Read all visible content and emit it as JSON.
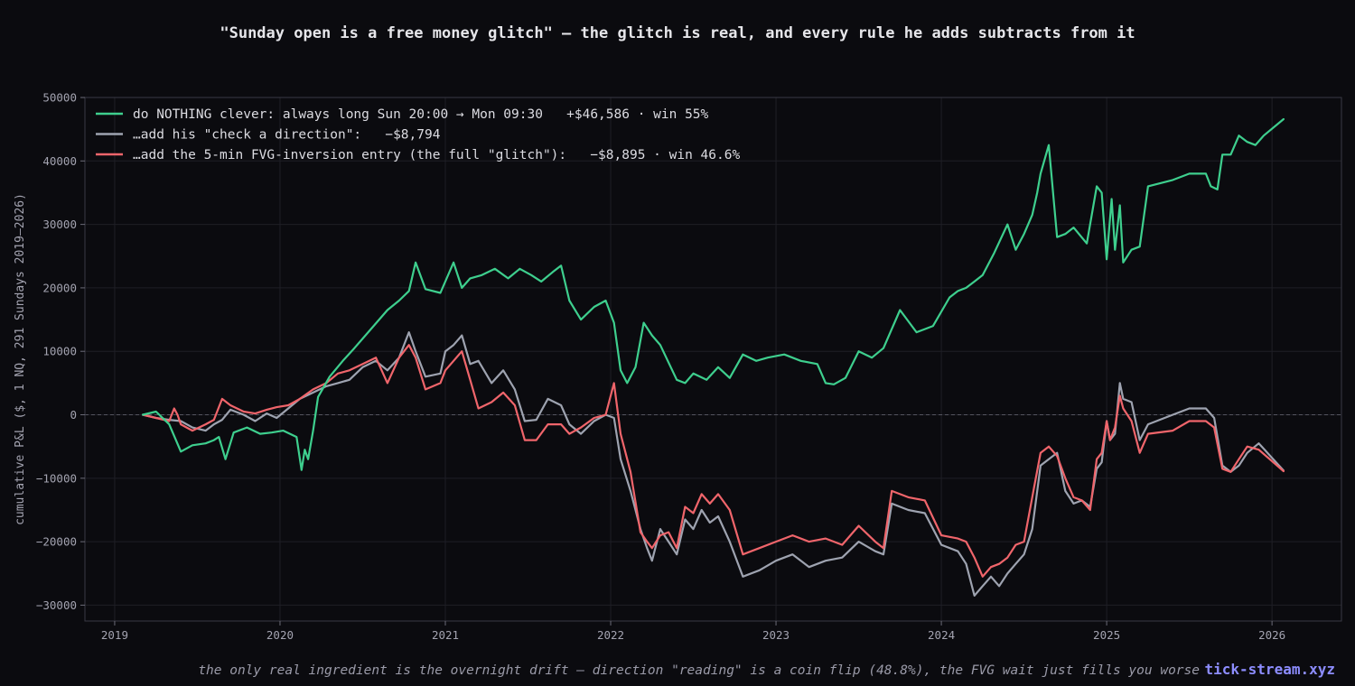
{
  "chart_data": {
    "type": "line",
    "title": "\"Sunday open is a free money glitch\" — the glitch is real, and every rule he adds subtracts from it",
    "xlabel": "",
    "ylabel": "cumulative P&L ($, 1 NQ, 291 Sundays 2019–2026)",
    "xlim": [
      2018.82,
      2026.42
    ],
    "ylim": [
      -32500,
      50000
    ],
    "x_ticks": [
      2019,
      2020,
      2021,
      2022,
      2023,
      2024,
      2025,
      2026
    ],
    "x_tick_labels": [
      "2019",
      "2020",
      "2021",
      "2022",
      "2023",
      "2024",
      "2025",
      "2026"
    ],
    "y_ticks": [
      -30000,
      -20000,
      -10000,
      0,
      10000,
      20000,
      30000,
      40000,
      50000
    ],
    "y_tick_labels": [
      "−30000",
      "−20000",
      "−10000",
      "0",
      "10000",
      "20000",
      "30000",
      "40000",
      "50000"
    ],
    "grid": true,
    "zero_line": true,
    "legend_position": "top-left",
    "series": [
      {
        "name": "do NOTHING clever: always long Sun 20:00 → Mon 09:30   +$46,586 · win 55%",
        "color": "#3ecf8e",
        "x": [
          2019.17,
          2019.25,
          2019.33,
          2019.4,
          2019.47,
          2019.55,
          2019.6,
          2019.63,
          2019.67,
          2019.72,
          2019.8,
          2019.88,
          2019.95,
          2020.02,
          2020.1,
          2020.13,
          2020.15,
          2020.17,
          2020.2,
          2020.23,
          2020.3,
          2020.38,
          2020.45,
          2020.55,
          2020.65,
          2020.72,
          2020.78,
          2020.82,
          2020.88,
          2020.97,
          2021.05,
          2021.1,
          2021.15,
          2021.22,
          2021.3,
          2021.38,
          2021.45,
          2021.52,
          2021.58,
          2021.65,
          2021.7,
          2021.75,
          2021.82,
          2021.9,
          2021.97,
          2022.02,
          2022.06,
          2022.1,
          2022.15,
          2022.2,
          2022.25,
          2022.3,
          2022.4,
          2022.45,
          2022.5,
          2022.58,
          2022.65,
          2022.72,
          2022.8,
          2022.88,
          2022.95,
          2023.05,
          2023.15,
          2023.25,
          2023.3,
          2023.35,
          2023.42,
          2023.5,
          2023.58,
          2023.65,
          2023.75,
          2023.85,
          2023.9,
          2023.95,
          2024.05,
          2024.1,
          2024.15,
          2024.2,
          2024.25,
          2024.32,
          2024.4,
          2024.45,
          2024.5,
          2024.55,
          2024.58,
          2024.6,
          2024.65,
          2024.7,
          2024.75,
          2024.8,
          2024.88,
          2024.94,
          2024.97,
          2025.0,
          2025.03,
          2025.05,
          2025.08,
          2025.1,
          2025.15,
          2025.2,
          2025.25,
          2025.4,
          2025.5,
          2025.6,
          2025.63,
          2025.67,
          2025.7,
          2025.75,
          2025.8,
          2025.85,
          2025.9,
          2025.95,
          2026.07
        ],
        "y": [
          0,
          500,
          -1500,
          -5800,
          -4800,
          -4500,
          -4000,
          -3500,
          -7000,
          -2800,
          -2000,
          -3000,
          -2800,
          -2500,
          -3500,
          -8700,
          -5500,
          -7000,
          -2500,
          2800,
          6000,
          8500,
          10500,
          13500,
          16500,
          18000,
          19500,
          24000,
          19800,
          19200,
          24000,
          20000,
          21500,
          22000,
          23000,
          21500,
          23000,
          22000,
          21000,
          22500,
          23500,
          18000,
          15000,
          17000,
          18000,
          14500,
          7000,
          5000,
          7500,
          14500,
          12500,
          11000,
          5500,
          5000,
          6500,
          5500,
          7500,
          5800,
          9500,
          8500,
          9000,
          9500,
          8500,
          8000,
          5000,
          4800,
          5800,
          10000,
          9000,
          10500,
          16500,
          13000,
          13500,
          14000,
          18500,
          19500,
          20000,
          21000,
          22000,
          25500,
          30000,
          26000,
          28500,
          31500,
          35000,
          38000,
          42500,
          28000,
          28500,
          29500,
          27000,
          36000,
          35000,
          24500,
          34000,
          26000,
          33000,
          24000,
          26000,
          26500,
          36000,
          37000,
          38000,
          38000,
          36000,
          35500,
          41000,
          41000,
          44000,
          43000,
          42500,
          44000,
          46586
        ]
      },
      {
        "name": "…add his \"check a direction\":   −$8,794",
        "color": "#9ea3b0",
        "x": [
          2019.17,
          2019.25,
          2019.33,
          2019.4,
          2019.47,
          2019.55,
          2019.6,
          2019.65,
          2019.7,
          2019.78,
          2019.85,
          2019.92,
          2019.98,
          2020.05,
          2020.12,
          2020.2,
          2020.28,
          2020.35,
          2020.42,
          2020.5,
          2020.58,
          2020.65,
          2020.72,
          2020.78,
          2020.82,
          2020.88,
          2020.97,
          2021.0,
          2021.05,
          2021.1,
          2021.15,
          2021.2,
          2021.28,
          2021.35,
          2021.42,
          2021.48,
          2021.55,
          2021.62,
          2021.7,
          2021.75,
          2021.82,
          2021.9,
          2021.97,
          2022.02,
          2022.06,
          2022.12,
          2022.18,
          2022.22,
          2022.25,
          2022.3,
          2022.35,
          2022.4,
          2022.45,
          2022.5,
          2022.55,
          2022.6,
          2022.65,
          2022.72,
          2022.8,
          2022.9,
          2023.0,
          2023.1,
          2023.2,
          2023.3,
          2023.4,
          2023.5,
          2023.6,
          2023.65,
          2023.7,
          2023.8,
          2023.9,
          2024.0,
          2024.1,
          2024.15,
          2024.2,
          2024.25,
          2024.3,
          2024.35,
          2024.4,
          2024.45,
          2024.5,
          2024.55,
          2024.6,
          2024.65,
          2024.7,
          2024.75,
          2024.8,
          2024.85,
          2024.9,
          2024.94,
          2024.97,
          2025.0,
          2025.02,
          2025.05,
          2025.08,
          2025.1,
          2025.15,
          2025.2,
          2025.25,
          2025.4,
          2025.5,
          2025.6,
          2025.65,
          2025.7,
          2025.75,
          2025.8,
          2025.85,
          2025.92,
          2026.07
        ],
        "y": [
          0,
          -500,
          -800,
          -1000,
          -2000,
          -2500,
          -1500,
          -800,
          800,
          0,
          -1000,
          200,
          -500,
          1000,
          2500,
          3500,
          4500,
          5000,
          5500,
          7500,
          8500,
          7000,
          9000,
          13000,
          10000,
          6000,
          6500,
          10000,
          11000,
          12500,
          8000,
          8500,
          5000,
          7000,
          4000,
          -1000,
          -800,
          2500,
          1500,
          -1500,
          -3000,
          -1000,
          0,
          -500,
          -7000,
          -12000,
          -18000,
          -21000,
          -23000,
          -18000,
          -20000,
          -22000,
          -16500,
          -18000,
          -15000,
          -17000,
          -16000,
          -20000,
          -25500,
          -24500,
          -23000,
          -22000,
          -24000,
          -23000,
          -22500,
          -20000,
          -21500,
          -22000,
          -14000,
          -15000,
          -15500,
          -20500,
          -21500,
          -23500,
          -28500,
          -27000,
          -25500,
          -27000,
          -25000,
          -23500,
          -22000,
          -18000,
          -8000,
          -7000,
          -6000,
          -12000,
          -14000,
          -13500,
          -14500,
          -8500,
          -7500,
          -1000,
          -4000,
          -3000,
          5000,
          2500,
          2000,
          -4000,
          -1500,
          0,
          1000,
          1000,
          -500,
          -8000,
          -9000,
          -8000,
          -6000,
          -4500,
          -8794
        ]
      },
      {
        "name": "…add the 5-min FVG-inversion entry (the full \"glitch\"):   −$8,895 · win 46.6%",
        "color": "#f0656b",
        "x": [
          2019.17,
          2019.25,
          2019.33,
          2019.36,
          2019.38,
          2019.4,
          2019.47,
          2019.55,
          2019.6,
          2019.65,
          2019.7,
          2019.78,
          2019.85,
          2019.92,
          2019.98,
          2020.05,
          2020.12,
          2020.2,
          2020.28,
          2020.35,
          2020.42,
          2020.5,
          2020.58,
          2020.65,
          2020.72,
          2020.78,
          2020.82,
          2020.88,
          2020.97,
          2021.0,
          2021.05,
          2021.1,
          2021.15,
          2021.2,
          2021.28,
          2021.35,
          2021.42,
          2021.48,
          2021.55,
          2021.62,
          2021.7,
          2021.75,
          2021.82,
          2021.9,
          2021.97,
          2022.02,
          2022.06,
          2022.12,
          2022.18,
          2022.22,
          2022.25,
          2022.3,
          2022.35,
          2022.4,
          2022.45,
          2022.5,
          2022.55,
          2022.6,
          2022.65,
          2022.72,
          2022.8,
          2022.9,
          2023.0,
          2023.1,
          2023.2,
          2023.3,
          2023.4,
          2023.5,
          2023.6,
          2023.65,
          2023.7,
          2023.8,
          2023.9,
          2024.0,
          2024.1,
          2024.15,
          2024.2,
          2024.25,
          2024.3,
          2024.35,
          2024.4,
          2024.45,
          2024.5,
          2024.55,
          2024.6,
          2024.65,
          2024.7,
          2024.75,
          2024.8,
          2024.85,
          2024.9,
          2024.94,
          2024.97,
          2025.0,
          2025.02,
          2025.05,
          2025.08,
          2025.1,
          2025.15,
          2025.2,
          2025.25,
          2025.4,
          2025.5,
          2025.6,
          2025.65,
          2025.7,
          2025.75,
          2025.8,
          2025.85,
          2025.92,
          2026.07
        ],
        "y": [
          0,
          -500,
          -1000,
          1000,
          0,
          -1500,
          -2500,
          -1500,
          -800,
          2500,
          1500,
          500,
          200,
          800,
          1200,
          1500,
          2500,
          4000,
          5000,
          6500,
          7000,
          8000,
          9000,
          5000,
          9000,
          11000,
          9000,
          4000,
          5000,
          7000,
          8500,
          10000,
          5500,
          1000,
          2000,
          3500,
          1500,
          -4000,
          -4000,
          -1500,
          -1500,
          -3000,
          -2000,
          -500,
          0,
          5000,
          -3000,
          -9000,
          -18500,
          -20000,
          -21000,
          -19000,
          -18500,
          -21000,
          -14500,
          -15500,
          -12500,
          -14000,
          -12500,
          -15000,
          -22000,
          -21000,
          -20000,
          -19000,
          -20000,
          -19500,
          -20500,
          -17500,
          -20000,
          -21000,
          -12000,
          -13000,
          -13500,
          -19000,
          -19500,
          -20000,
          -22500,
          -25500,
          -24000,
          -23500,
          -22500,
          -20500,
          -20000,
          -13000,
          -6000,
          -5000,
          -6500,
          -10000,
          -13000,
          -13500,
          -15000,
          -7000,
          -6000,
          -1000,
          -4000,
          -2000,
          3000,
          1000,
          -1000,
          -6000,
          -3000,
          -2500,
          -1000,
          -1000,
          -2000,
          -8500,
          -9000,
          -7000,
          -5000,
          -5500,
          -8895
        ]
      }
    ]
  },
  "footer": {
    "note": "the only real ingredient is the overnight drift — direction \"reading\" is a coin flip (48.8%), the FVG wait just fills you worse",
    "brand": "tick-stream.xyz"
  }
}
